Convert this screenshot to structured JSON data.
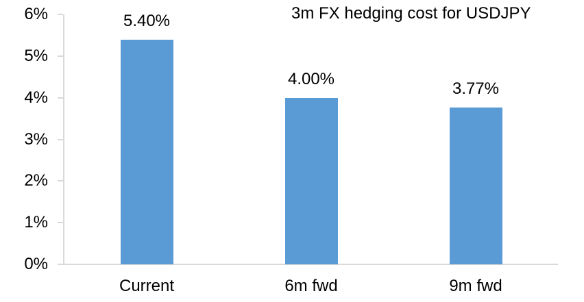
{
  "chart_data": {
    "type": "bar",
    "title": "3m FX hedging cost for USDJPY",
    "categories": [
      "Current",
      "6m fwd",
      "9m fwd"
    ],
    "values": [
      5.4,
      4.0,
      3.77
    ],
    "data_labels": [
      "5.40%",
      "4.00%",
      "3.77%"
    ],
    "ytick_labels": [
      "0%",
      "1%",
      "2%",
      "3%",
      "4%",
      "5%",
      "6%"
    ],
    "ylim": [
      0,
      6
    ],
    "ytick_step": 1,
    "xlabel": "",
    "ylabel": "",
    "grid": "off",
    "legend": "none",
    "colors": {
      "bar": "#5B9BD5",
      "axis": "#D9D9D9",
      "text": "#000000",
      "background": "#FFFFFF"
    }
  }
}
